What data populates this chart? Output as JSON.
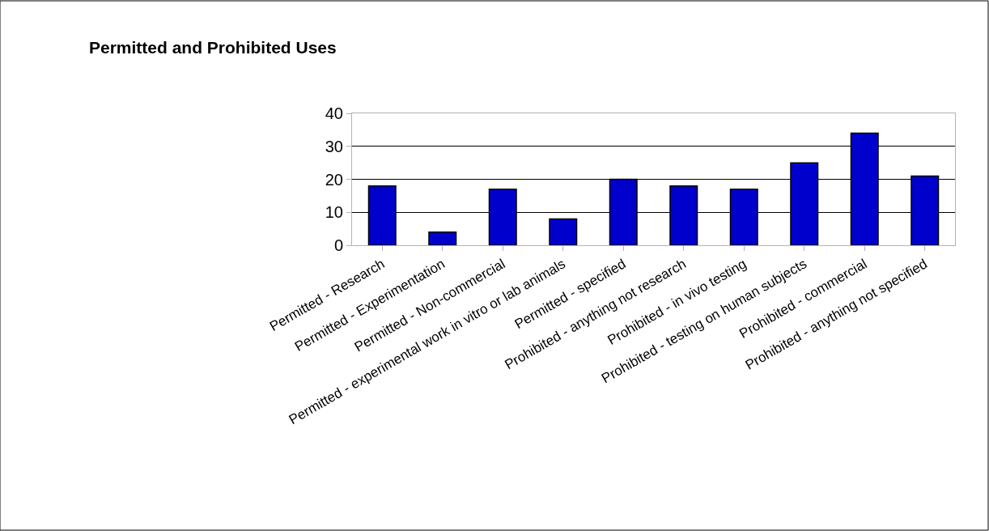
{
  "chart_data": {
    "type": "bar",
    "title": "Permitted and Prohibited Uses",
    "categories": [
      "Permitted - Research",
      "Permitted - Experimentation",
      "Permitted - Non-commercial",
      "Permitted - experimental work in vitro or lab animals",
      "Permitted - specified",
      "Prohibited - anything not research",
      "Prohibited - in vivo testing",
      "Prohibited - testing on human subjects",
      "Prohibited - commercial",
      "Prohibited - anything not specified"
    ],
    "values": [
      18,
      4,
      17,
      8,
      20,
      18,
      17,
      25,
      34,
      21
    ],
    "color": "#0000cc",
    "ylim": [
      0,
      40
    ],
    "yticks": [
      0,
      10,
      20,
      30,
      40
    ],
    "grid": "y",
    "legend": false
  }
}
